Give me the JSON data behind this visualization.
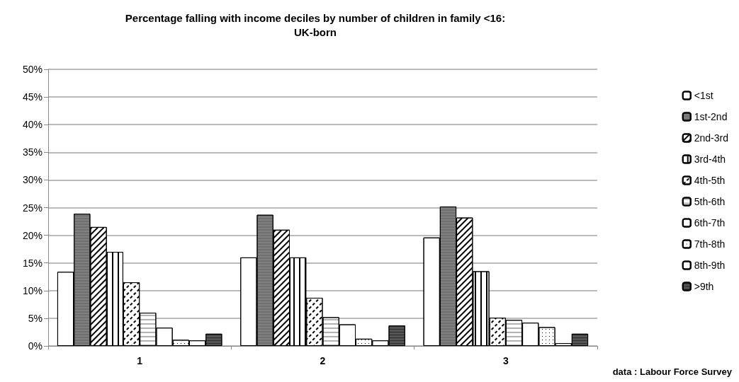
{
  "chart_data": {
    "type": "bar",
    "title": "Percentage falling with income deciles by number of children in family <16:\nUK-born",
    "categories": [
      "1",
      "2",
      "3"
    ],
    "series": [
      {
        "name": "<1st",
        "color": "#ffffff",
        "values": [
          13.4,
          16.0,
          19.6
        ]
      },
      {
        "name": "1st-2nd",
        "color": "#7f7f7f",
        "values": [
          23.9,
          23.7,
          25.2
        ]
      },
      {
        "name": "2nd-3rd",
        "color": "#ffffff",
        "values": [
          21.5,
          21.0,
          23.2
        ]
      },
      {
        "name": "3rd-4th",
        "color": "#ffffff",
        "values": [
          17.0,
          16.0,
          13.5
        ]
      },
      {
        "name": "4th-5th",
        "color": "#ffffff",
        "values": [
          11.5,
          8.7,
          5.1
        ]
      },
      {
        "name": "5th-6th",
        "color": "#ffffff",
        "values": [
          6.0,
          5.2,
          4.7
        ]
      },
      {
        "name": "6th-7th",
        "color": "#ffffff",
        "values": [
          3.3,
          3.9,
          4.2
        ]
      },
      {
        "name": "7th-8th",
        "color": "#ffffff",
        "values": [
          1.1,
          1.3,
          3.4
        ]
      },
      {
        "name": "8th-9th",
        "color": "#ffffff",
        "values": [
          1.0,
          1.0,
          0.5
        ]
      },
      {
        "name": ">9th",
        "color": "#595959",
        "values": [
          2.2,
          3.7,
          2.2
        ]
      }
    ],
    "ylim": [
      0,
      50
    ],
    "yticks": [
      {
        "value": 0,
        "label": "0%"
      },
      {
        "value": 5,
        "label": "5%"
      },
      {
        "value": 10,
        "label": "10%"
      },
      {
        "value": 15,
        "label": "15%"
      },
      {
        "value": 20,
        "label": "20%"
      },
      {
        "value": 25,
        "label": "25%"
      },
      {
        "value": 30,
        "label": "30%"
      },
      {
        "value": 35,
        "label": "35%"
      },
      {
        "value": 40,
        "label": "40%"
      },
      {
        "value": 45,
        "label": "45%"
      },
      {
        "value": 50,
        "label": "50%"
      }
    ],
    "grid": "y",
    "legend": "right",
    "annotations": [
      "data : Labour Force Survey"
    ]
  }
}
